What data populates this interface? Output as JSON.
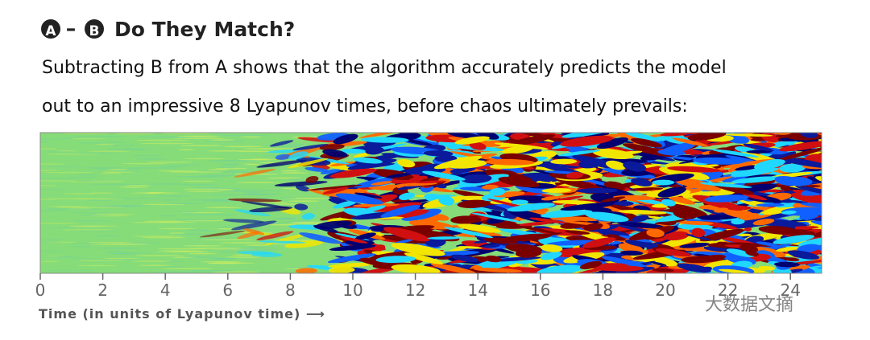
{
  "header": {
    "badge_a": "A",
    "operator": "–",
    "badge_b": "B",
    "title": "Do They Match?"
  },
  "description": [
    "Subtracting B from A shows that the algorithm accurately predicts the model",
    "out to an impressive 8 Lyapunov times, before chaos ultimately prevails:"
  ],
  "chart_data": {
    "type": "heatmap",
    "x_label": "Time (in units of Lyapunov time) ⟶",
    "xlim": [
      0,
      25
    ],
    "xticks": [
      0,
      2,
      4,
      6,
      8,
      10,
      12,
      14,
      16,
      18,
      20,
      22,
      24
    ]
  },
  "watermark": "大数据文摘"
}
